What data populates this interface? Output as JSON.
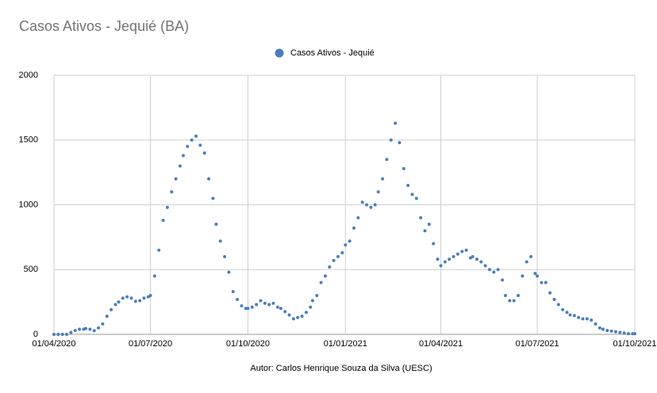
{
  "chart_data": {
    "type": "scatter",
    "title": "Casos Ativos - Jequié (BA)",
    "footer": "Autor: Carlos Henrique Souza da Silva  (UESC)",
    "legend": "top",
    "grid": true,
    "xlim": [
      "01/04/2020",
      "01/10/2021"
    ],
    "xticks": [
      "01/04/2020",
      "01/07/2020",
      "01/10/2020",
      "01/01/2021",
      "01/04/2021",
      "01/07/2021",
      "01/10/2021"
    ],
    "ylim": [
      0,
      2000
    ],
    "yticks": [
      0,
      500,
      1000,
      1500,
      2000
    ],
    "x": [
      "01/04/2020",
      "05/04/2020",
      "09/04/2020",
      "13/04/2020",
      "17/04/2020",
      "21/04/2020",
      "25/04/2020",
      "29/04/2020",
      "01/05/2020",
      "05/05/2020",
      "09/05/2020",
      "13/05/2020",
      "17/05/2020",
      "21/05/2020",
      "25/05/2020",
      "29/05/2020",
      "01/06/2020",
      "05/06/2020",
      "09/06/2020",
      "13/06/2020",
      "17/06/2020",
      "21/06/2020",
      "25/06/2020",
      "29/06/2020",
      "01/07/2020",
      "05/07/2020",
      "09/07/2020",
      "13/07/2020",
      "17/07/2020",
      "21/07/2020",
      "25/07/2020",
      "29/07/2020",
      "01/08/2020",
      "05/08/2020",
      "09/08/2020",
      "13/08/2020",
      "17/08/2020",
      "21/08/2020",
      "25/08/2020",
      "29/08/2020",
      "01/09/2020",
      "05/09/2020",
      "09/09/2020",
      "13/09/2020",
      "17/09/2020",
      "21/09/2020",
      "25/09/2020",
      "29/09/2020",
      "01/10/2020",
      "05/10/2020",
      "09/10/2020",
      "13/10/2020",
      "17/10/2020",
      "21/10/2020",
      "25/10/2020",
      "29/10/2020",
      "01/11/2020",
      "05/11/2020",
      "09/11/2020",
      "13/11/2020",
      "17/11/2020",
      "21/11/2020",
      "25/11/2020",
      "29/11/2020",
      "01/12/2020",
      "05/12/2020",
      "09/12/2020",
      "13/12/2020",
      "17/12/2020",
      "21/12/2020",
      "25/12/2020",
      "29/12/2020",
      "01/01/2021",
      "05/01/2021",
      "09/01/2021",
      "13/01/2021",
      "17/01/2021",
      "21/01/2021",
      "25/01/2021",
      "29/01/2021",
      "01/02/2021",
      "05/02/2021",
      "09/02/2021",
      "13/02/2021",
      "17/02/2021",
      "21/02/2021",
      "25/02/2021",
      "01/03/2021",
      "05/03/2021",
      "09/03/2021",
      "13/03/2021",
      "17/03/2021",
      "21/03/2021",
      "25/03/2021",
      "29/03/2021",
      "01/04/2021",
      "05/04/2021",
      "09/04/2021",
      "13/04/2021",
      "17/04/2021",
      "21/04/2021",
      "25/04/2021",
      "29/04/2021",
      "01/05/2021",
      "05/05/2021",
      "09/05/2021",
      "13/05/2021",
      "17/05/2021",
      "21/05/2021",
      "25/05/2021",
      "29/05/2021",
      "01/06/2021",
      "05/06/2021",
      "09/06/2021",
      "13/06/2021",
      "17/06/2021",
      "21/06/2021",
      "25/06/2021",
      "29/06/2021",
      "01/07/2021",
      "05/07/2021",
      "09/07/2021",
      "13/07/2021",
      "17/07/2021",
      "21/07/2021",
      "25/07/2021",
      "29/07/2021",
      "01/08/2021",
      "05/08/2021",
      "09/08/2021",
      "13/08/2021",
      "17/08/2021",
      "21/08/2021",
      "25/08/2021",
      "29/08/2021",
      "01/09/2021",
      "05/09/2021",
      "09/09/2021",
      "13/09/2021",
      "17/09/2021",
      "21/09/2021",
      "25/09/2021",
      "29/09/2021",
      "01/10/2021"
    ],
    "series": [
      {
        "name": "Casos Ativos - Jequié",
        "color": "#4a7ebb",
        "values": [
          0,
          0,
          0,
          0,
          15,
          30,
          40,
          40,
          45,
          40,
          28,
          50,
          80,
          140,
          190,
          230,
          250,
          280,
          290,
          280,
          255,
          260,
          280,
          290,
          300,
          450,
          650,
          880,
          980,
          1100,
          1200,
          1300,
          1380,
          1450,
          1500,
          1530,
          1460,
          1400,
          1200,
          1050,
          850,
          720,
          600,
          480,
          330,
          270,
          220,
          200,
          200,
          210,
          230,
          260,
          240,
          230,
          240,
          210,
          200,
          175,
          150,
          120,
          130,
          140,
          170,
          210,
          260,
          300,
          400,
          450,
          520,
          570,
          600,
          630,
          690,
          720,
          820,
          900,
          1020,
          1000,
          980,
          1000,
          1100,
          1200,
          1350,
          1500,
          1630,
          1480,
          1280,
          1150,
          1080,
          1050,
          900,
          800,
          850,
          700,
          580,
          530,
          560,
          580,
          600,
          620,
          640,
          650,
          590,
          600,
          580,
          560,
          530,
          500,
          480,
          500,
          420,
          300,
          260,
          260,
          300,
          450,
          560,
          600,
          470,
          450,
          400,
          400,
          320,
          270,
          230,
          190,
          170,
          150,
          145,
          130,
          120,
          120,
          110,
          80,
          50,
          40,
          30,
          25,
          20,
          15,
          10,
          5,
          5,
          5
        ]
      }
    ]
  }
}
